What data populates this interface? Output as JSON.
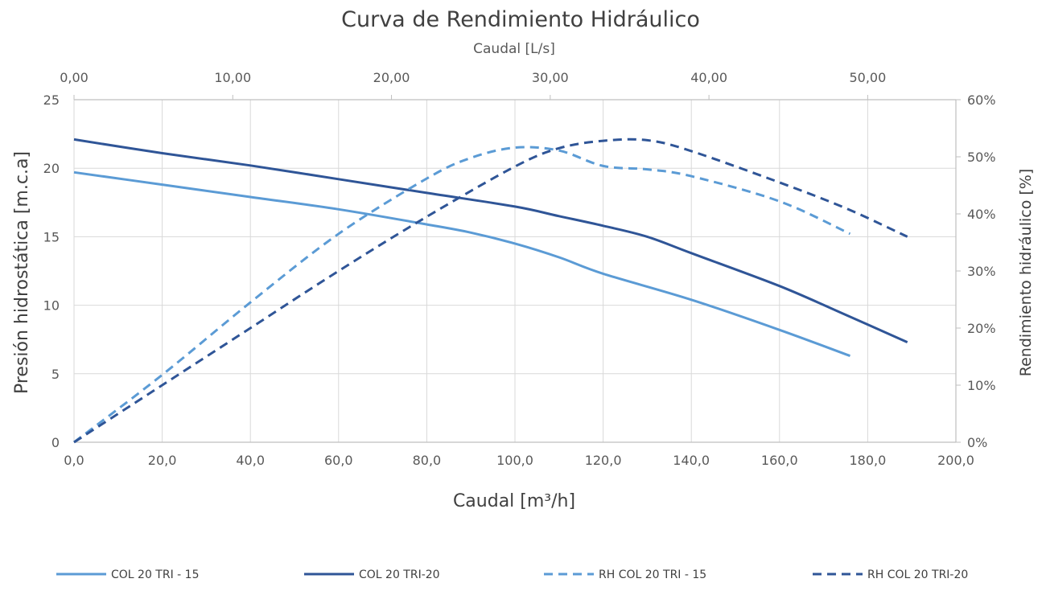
{
  "chart_data": {
    "type": "line",
    "title": "Curva de Rendimiento Hidráulico",
    "xlabel": "Caudal [m³/h]",
    "x2label": "Caudal [L/s]",
    "ylabel": "Presión hidrostática [m.c.a]",
    "y2label": "Rendimiento hidráulico [%]",
    "xlim": [
      0,
      200
    ],
    "x2lim": [
      0,
      55.5556
    ],
    "ylim": [
      0,
      25
    ],
    "y2lim": [
      0,
      0.6
    ],
    "x_ticks": [
      "0,0",
      "20,0",
      "40,0",
      "60,0",
      "80,0",
      "100,0",
      "120,0",
      "140,0",
      "160,0",
      "180,0",
      "200,0"
    ],
    "x2_ticks": [
      "0,00",
      "10,00",
      "20,00",
      "30,00",
      "40,00",
      "50,00"
    ],
    "y_ticks": [
      "0",
      "5",
      "10",
      "15",
      "20",
      "25"
    ],
    "y2_ticks": [
      "0%",
      "10%",
      "20%",
      "30%",
      "40%",
      "50%",
      "60%"
    ],
    "grid": true,
    "legend_position": "bottom",
    "series": [
      {
        "name": "COL 20 TRI - 15",
        "axis": "left",
        "style": "solid",
        "color": "#5B9BD5",
        "x": [
          0,
          20,
          40,
          60,
          80,
          90,
          100,
          110,
          120,
          140,
          160,
          176
        ],
        "y": [
          19.7,
          18.8,
          17.9,
          17.0,
          15.9,
          15.3,
          14.5,
          13.5,
          12.3,
          10.4,
          8.2,
          6.3
        ]
      },
      {
        "name": "COL 20 TRI-20",
        "axis": "left",
        "style": "solid",
        "color": "#2F5597",
        "x": [
          0,
          20,
          40,
          60,
          80,
          100,
          110,
          120,
          130,
          140,
          160,
          175,
          189
        ],
        "y": [
          22.1,
          21.1,
          20.2,
          19.2,
          18.2,
          17.2,
          16.5,
          15.8,
          15.0,
          13.8,
          11.4,
          9.3,
          7.3
        ]
      },
      {
        "name": "RH COL 20 TRI - 15",
        "axis": "right",
        "style": "dashed",
        "color": "#5B9BD5",
        "x": [
          0,
          20,
          40,
          60,
          80,
          90,
          100,
          110,
          120,
          130,
          140,
          160,
          176
        ],
        "y": [
          0.0,
          0.118,
          0.245,
          0.365,
          0.462,
          0.498,
          0.516,
          0.511,
          0.484,
          0.478,
          0.466,
          0.422,
          0.365
        ]
      },
      {
        "name": "RH COL 20 TRI-20",
        "axis": "right",
        "style": "dashed",
        "color": "#2F5597",
        "x": [
          0,
          20,
          40,
          60,
          80,
          100,
          110,
          120,
          130,
          140,
          160,
          175,
          189
        ],
        "y": [
          0.0,
          0.1,
          0.2,
          0.3,
          0.395,
          0.483,
          0.515,
          0.528,
          0.529,
          0.51,
          0.455,
          0.41,
          0.36
        ]
      }
    ]
  }
}
